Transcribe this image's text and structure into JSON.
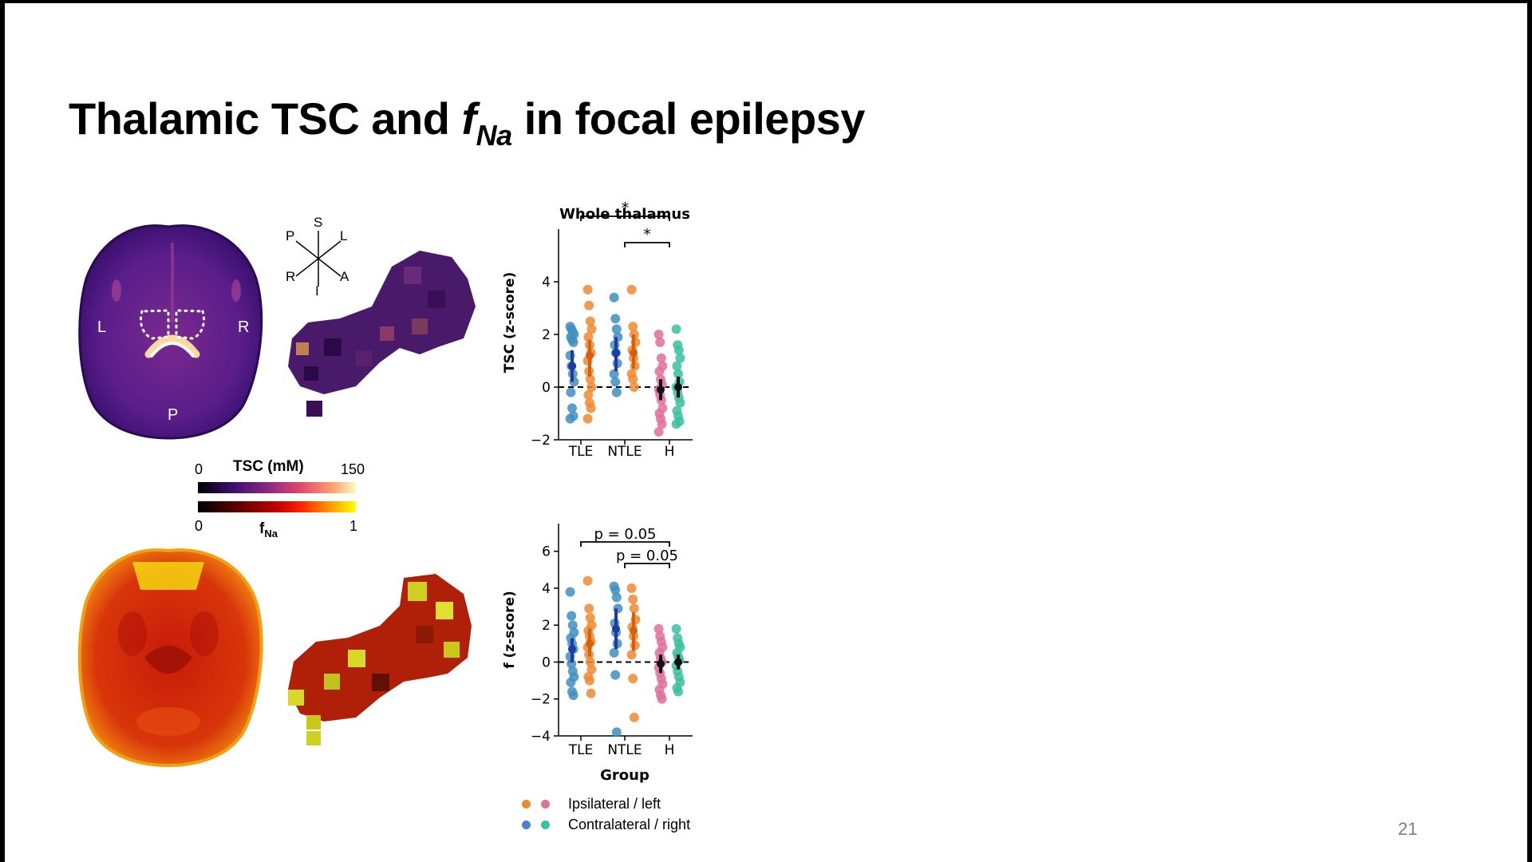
{
  "slide": {
    "title_prefix": "Thalamic TSC and ",
    "title_symbol": "f",
    "title_subscript": "Na",
    "title_suffix": " in focal epilepsy",
    "slide_number": "21"
  },
  "images": {
    "brain_labels": {
      "left": "L",
      "right": "R",
      "posterior": "P"
    },
    "orientation": {
      "superior": "S",
      "inferior": "I",
      "posterior": "P",
      "left": "L",
      "right": "R",
      "anterior": "A"
    },
    "colorbar_tsc": {
      "label": "TSC (mM)",
      "min": "0",
      "max": "150",
      "colormap": [
        "#000004",
        "#3b0f70",
        "#8c2981",
        "#de4968",
        "#fe9f6d",
        "#fcfdbf"
      ]
    },
    "colorbar_fna": {
      "label": "f",
      "subscript": "Na",
      "min": "0",
      "max": "1",
      "colormap": [
        "#000000",
        "#5c0000",
        "#c00000",
        "#ff2000",
        "#ff9000",
        "#ffff00"
      ]
    }
  },
  "colors": {
    "ipsi_orange": "#ee8a30",
    "ipsi_pink": "#e0709a",
    "contra_blue": "#3f8fc0",
    "contra_teal": "#3cc0a0",
    "mean_dark_blue": "#1f3aa0",
    "mean_dark_orange": "#d46010",
    "mean_black": "#111111"
  },
  "legend": {
    "ipsilateral": "Ipsilateral / left",
    "contralateral": "Contralateral / right",
    "ipsi_colors": [
      "#ee8a30",
      "#e0709a"
    ],
    "contra_colors": [
      "#4a7fd0",
      "#3cc0a0"
    ]
  },
  "chart_data": [
    {
      "type": "scatter",
      "title": "Whole thalamus",
      "ylabel": "TSC (z-score)",
      "xlabel": "",
      "categories": [
        "TLE",
        "NTLE",
        "H"
      ],
      "ylim": [
        -2,
        6
      ],
      "yticks": [
        -2,
        0,
        2,
        4
      ],
      "reference_line": 0,
      "series": [
        {
          "group": "TLE",
          "side": "contra",
          "color": "#3f8fc0",
          "values": [
            2.3,
            2.2,
            2.1,
            2.0,
            1.9,
            1.8,
            1.7,
            1.2,
            0.8,
            0.5,
            0.2,
            -0.2,
            -0.8,
            -1.1,
            -1.2
          ],
          "mean": 0.8,
          "ci": [
            0.2,
            1.4
          ]
        },
        {
          "group": "TLE",
          "side": "ipsi",
          "color": "#ee8a30",
          "values": [
            3.7,
            3.1,
            2.5,
            2.2,
            1.9,
            1.6,
            1.3,
            1.0,
            0.6,
            0.3,
            0.0,
            -0.3,
            -0.6,
            -0.8,
            -1.2
          ],
          "mean": 1.2,
          "ci": [
            0.4,
            1.8
          ]
        },
        {
          "group": "NTLE",
          "side": "contra",
          "color": "#3f8fc0",
          "values": [
            3.4,
            2.6,
            2.2,
            1.9,
            1.6,
            1.3,
            0.9,
            0.5,
            0.2,
            -0.2
          ],
          "mean": 1.3,
          "ci": [
            0.6,
            1.9
          ]
        },
        {
          "group": "NTLE",
          "side": "ipsi",
          "color": "#ee8a30",
          "values": [
            3.7,
            2.3,
            2.0,
            1.7,
            1.4,
            1.1,
            0.8,
            0.5,
            0.3,
            0.0
          ],
          "mean": 1.3,
          "ci": [
            0.7,
            2.0
          ]
        },
        {
          "group": "H",
          "side": "left",
          "color": "#e0709a",
          "values": [
            2.0,
            1.7,
            1.1,
            0.8,
            0.6,
            0.3,
            0.1,
            -0.1,
            -0.3,
            -0.5,
            -0.8,
            -1.0,
            -1.2,
            -1.4,
            -1.7
          ],
          "mean": -0.1,
          "ci": [
            -0.5,
            0.3
          ]
        },
        {
          "group": "H",
          "side": "right",
          "color": "#3cc0a0",
          "values": [
            2.2,
            1.6,
            1.4,
            1.1,
            0.8,
            0.5,
            0.2,
            0.0,
            -0.2,
            -0.4,
            -0.6,
            -0.9,
            -1.1,
            -1.3,
            -1.4
          ],
          "mean": 0.0,
          "ci": [
            -0.4,
            0.4
          ]
        }
      ],
      "annotations": [
        {
          "from": "TLE",
          "to": "H",
          "label": "*"
        },
        {
          "from": "NTLE",
          "to": "H",
          "label": "*"
        }
      ]
    },
    {
      "type": "scatter",
      "title": "",
      "ylabel": "f (z-score)",
      "xlabel": "Group",
      "categories": [
        "TLE",
        "NTLE",
        "H"
      ],
      "ylim": [
        -4,
        7.5
      ],
      "yticks": [
        -4,
        -2,
        0,
        2,
        4,
        6
      ],
      "reference_line": 0,
      "series": [
        {
          "group": "TLE",
          "side": "contra",
          "color": "#3f8fc0",
          "values": [
            3.8,
            2.5,
            2.0,
            1.6,
            1.3,
            1.0,
            0.7,
            0.3,
            -0.1,
            -0.5,
            -0.8,
            -1.1,
            -1.6,
            -1.8
          ],
          "mean": 0.7,
          "ci": [
            0.0,
            1.3
          ]
        },
        {
          "group": "TLE",
          "side": "ipsi",
          "color": "#ee8a30",
          "values": [
            4.4,
            2.9,
            2.4,
            2.0,
            1.7,
            1.4,
            1.1,
            0.8,
            0.4,
            0.0,
            -0.4,
            -0.8,
            -1.0,
            -1.7
          ],
          "mean": 1.0,
          "ci": [
            0.3,
            1.8
          ]
        },
        {
          "group": "NTLE",
          "side": "contra",
          "color": "#3f8fc0",
          "values": [
            4.1,
            3.9,
            3.5,
            2.9,
            2.1,
            1.6,
            1.0,
            0.5,
            -0.7,
            -3.8
          ],
          "mean": 1.8,
          "ci": [
            0.7,
            2.9
          ]
        },
        {
          "group": "NTLE",
          "side": "ipsi",
          "color": "#ee8a30",
          "values": [
            4.0,
            3.4,
            2.9,
            2.3,
            1.9,
            1.4,
            0.9,
            0.4,
            -0.9,
            -3.0
          ],
          "mean": 1.7,
          "ci": [
            0.6,
            2.7
          ]
        },
        {
          "group": "H",
          "side": "left",
          "color": "#e0709a",
          "values": [
            1.8,
            1.4,
            1.1,
            0.8,
            0.5,
            0.2,
            0.0,
            -0.3,
            -0.6,
            -0.9,
            -1.2,
            -1.5,
            -1.8,
            -2.0
          ],
          "mean": -0.1,
          "ci": [
            -0.6,
            0.4
          ]
        },
        {
          "group": "H",
          "side": "right",
          "color": "#3cc0a0",
          "values": [
            1.8,
            1.3,
            1.0,
            0.8,
            0.5,
            0.3,
            0.1,
            -0.2,
            -0.5,
            -0.8,
            -1.1,
            -1.4,
            -1.6
          ],
          "mean": 0.0,
          "ci": [
            -0.4,
            0.4
          ]
        }
      ],
      "annotations": [
        {
          "from": "TLE",
          "to": "H",
          "label": "p = 0.05"
        },
        {
          "from": "NTLE",
          "to": "H",
          "label": "p = 0.05"
        }
      ]
    }
  ]
}
